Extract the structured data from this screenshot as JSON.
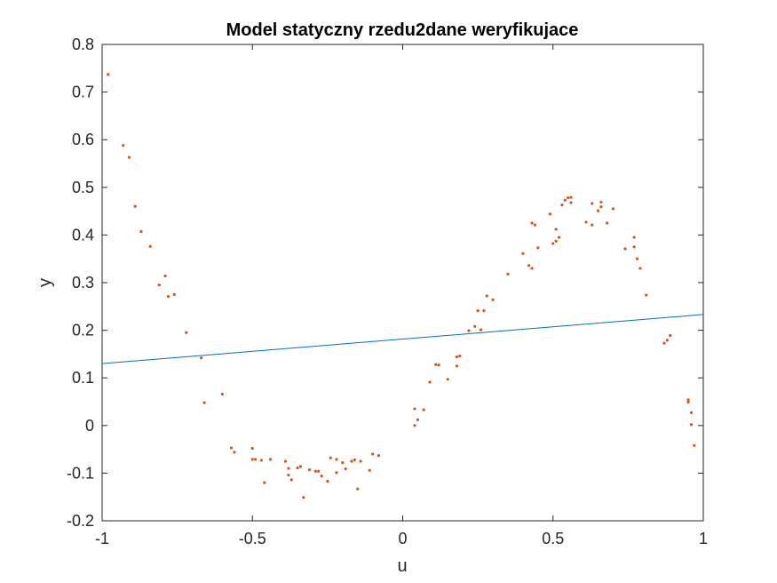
{
  "chart_data": {
    "type": "scatter",
    "title": "Model statyczny rzedu2dane weryfikujace",
    "xlabel": "u",
    "ylabel": "y",
    "xlim": [
      -1,
      1
    ],
    "ylim": [
      -0.2,
      0.8
    ],
    "xticks": [
      -1,
      -0.5,
      0,
      0.5,
      1
    ],
    "xtick_labels": [
      "-1",
      "-0.5",
      "0",
      "0.5",
      "1"
    ],
    "yticks": [
      -0.2,
      -0.1,
      0,
      0.1,
      0.2,
      0.3,
      0.4,
      0.5,
      0.6,
      0.7,
      0.8
    ],
    "ytick_labels": [
      "-0.2",
      "-0.1",
      "0",
      "0.1",
      "0.2",
      "0.3",
      "0.4",
      "0.5",
      "0.6",
      "0.7",
      "0.8"
    ],
    "grid": false,
    "box": true,
    "series": [
      {
        "kind": "line",
        "color": "#0072bd",
        "x": [
          -1,
          1
        ],
        "y": [
          0.13,
          0.233
        ]
      },
      {
        "kind": "scatter",
        "color": "#d95319",
        "x": [
          -0.98,
          -0.93,
          -0.91,
          -0.89,
          -0.87,
          -0.84,
          -0.81,
          -0.79,
          -0.78,
          -0.76,
          -0.72,
          -0.67,
          -0.66,
          -0.6,
          -0.57,
          -0.56,
          -0.5,
          -0.5,
          -0.49,
          -0.47,
          -0.46,
          -0.44,
          -0.39,
          -0.38,
          -0.38,
          -0.37,
          -0.35,
          -0.34,
          -0.33,
          -0.31,
          -0.29,
          -0.28,
          -0.27,
          -0.25,
          -0.24,
          -0.22,
          -0.22,
          -0.2,
          -0.19,
          -0.17,
          -0.16,
          -0.15,
          -0.14,
          -0.11,
          -0.1,
          -0.08,
          0.04,
          0.04,
          0.05,
          0.07,
          0.09,
          0.11,
          0.12,
          0.15,
          0.18,
          0.18,
          0.19,
          0.22,
          0.24,
          0.25,
          0.26,
          0.27,
          0.28,
          0.3,
          0.35,
          0.4,
          0.42,
          0.43,
          0.43,
          0.44,
          0.45,
          0.49,
          0.5,
          0.51,
          0.51,
          0.52,
          0.53,
          0.54,
          0.55,
          0.56,
          0.56,
          0.61,
          0.63,
          0.63,
          0.65,
          0.66,
          0.66,
          0.68,
          0.7,
          0.74,
          0.77,
          0.77,
          0.78,
          0.79,
          0.81,
          0.87,
          0.88,
          0.89,
          0.95,
          0.95,
          0.96,
          0.96,
          0.97
        ],
        "y": [
          0.737,
          0.588,
          0.563,
          0.46,
          0.407,
          0.376,
          0.295,
          0.314,
          0.271,
          0.275,
          0.195,
          0.142,
          0.048,
          0.066,
          -0.047,
          -0.056,
          -0.048,
          -0.071,
          -0.071,
          -0.073,
          -0.12,
          -0.071,
          -0.075,
          -0.09,
          -0.104,
          -0.114,
          -0.089,
          -0.086,
          -0.151,
          -0.093,
          -0.096,
          -0.096,
          -0.106,
          -0.117,
          -0.068,
          -0.071,
          -0.099,
          -0.078,
          -0.091,
          -0.075,
          -0.072,
          -0.133,
          -0.075,
          -0.094,
          -0.06,
          -0.063,
          0.0,
          0.035,
          0.012,
          0.033,
          0.091,
          0.128,
          0.127,
          0.097,
          0.125,
          0.144,
          0.146,
          0.199,
          0.208,
          0.241,
          0.201,
          0.241,
          0.272,
          0.264,
          0.318,
          0.361,
          0.336,
          0.425,
          0.33,
          0.421,
          0.373,
          0.444,
          0.382,
          0.412,
          0.387,
          0.395,
          0.463,
          0.473,
          0.478,
          0.468,
          0.479,
          0.427,
          0.421,
          0.466,
          0.451,
          0.459,
          0.469,
          0.425,
          0.455,
          0.371,
          0.395,
          0.375,
          0.35,
          0.33,
          0.274,
          0.173,
          0.179,
          0.189,
          0.054,
          0.049,
          0.002,
          0.027,
          -0.042
        ]
      }
    ]
  }
}
